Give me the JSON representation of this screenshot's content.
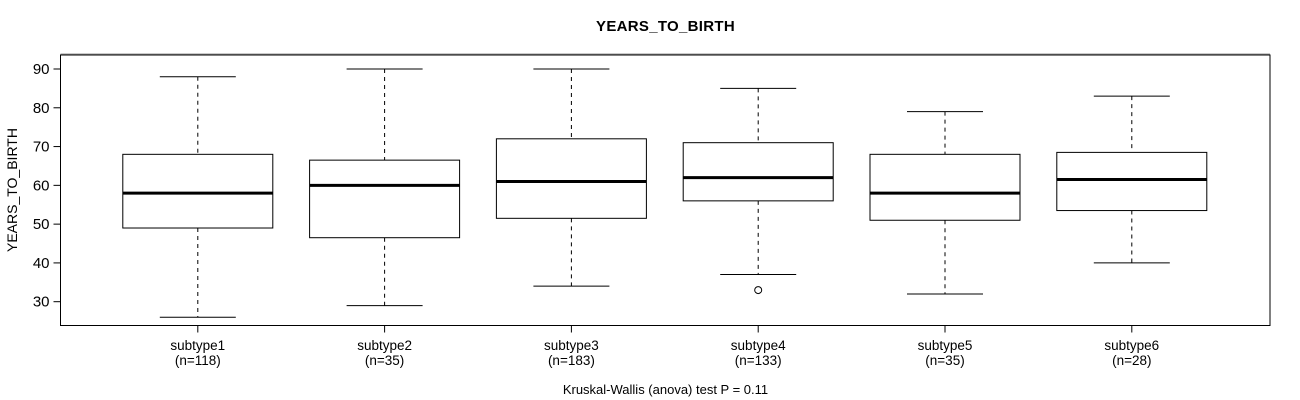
{
  "title": "YEARS_TO_BIRTH",
  "y_axis": {
    "label": "YEARS_TO_BIRTH"
  },
  "caption": "Kruskal-Wallis (anova) test P = 0.11",
  "colors": {
    "background": "#ffffff",
    "foreground": "#000000",
    "frame_top_shade": "#999999"
  },
  "chart_data": {
    "type": "boxplot",
    "title": "YEARS_TO_BIRTH",
    "xlabel": "",
    "ylabel": "YEARS_TO_BIRTH",
    "ylim": [
      24,
      93.5
    ],
    "yticks": [
      30,
      40,
      50,
      60,
      70,
      80,
      90
    ],
    "grid": false,
    "legend": null,
    "categories": [
      "subtype1",
      "subtype2",
      "subtype3",
      "subtype4",
      "subtype5",
      "subtype6"
    ],
    "groups": [
      {
        "label": "subtype1",
        "n_label": "(n=118)",
        "n": 118,
        "whisker_low": 26,
        "q1": 49,
        "median": 58,
        "q3": 68,
        "whisker_high": 88,
        "outliers": []
      },
      {
        "label": "subtype2",
        "n_label": "(n=35)",
        "n": 35,
        "whisker_low": 29,
        "q1": 46.5,
        "median": 60,
        "q3": 66.5,
        "whisker_high": 90,
        "outliers": []
      },
      {
        "label": "subtype3",
        "n_label": "(n=183)",
        "n": 183,
        "whisker_low": 34,
        "q1": 51.5,
        "median": 61,
        "q3": 72,
        "whisker_high": 90,
        "outliers": []
      },
      {
        "label": "subtype4",
        "n_label": "(n=133)",
        "n": 133,
        "whisker_low": 37,
        "q1": 56,
        "median": 62,
        "q3": 71,
        "whisker_high": 85,
        "outliers": [
          33
        ]
      },
      {
        "label": "subtype5",
        "n_label": "(n=35)",
        "n": 35,
        "whisker_low": 32,
        "q1": 51,
        "median": 58,
        "q3": 68,
        "whisker_high": 79,
        "outliers": []
      },
      {
        "label": "subtype6",
        "n_label": "(n=28)",
        "n": 28,
        "whisker_low": 40,
        "q1": 53.5,
        "median": 61.5,
        "q3": 68.5,
        "whisker_high": 83,
        "outliers": []
      }
    ],
    "footnote": "Kruskal-Wallis (anova) test P = 0.11"
  }
}
